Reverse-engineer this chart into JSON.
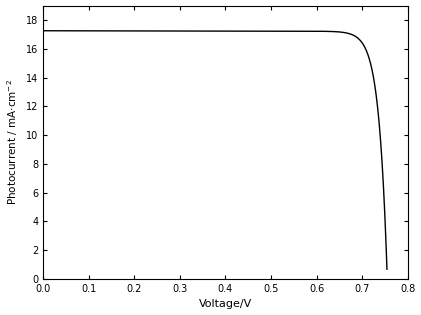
{
  "title": "",
  "xlabel": "Voltage/V",
  "ylabel": "Photocurrent / mA cm$^{-2}$",
  "xlim": [
    0.0,
    0.8
  ],
  "ylim": [
    0.0,
    19.0
  ],
  "xticks": [
    0.0,
    0.1,
    0.2,
    0.3,
    0.4,
    0.5,
    0.6,
    0.7,
    0.8
  ],
  "yticks": [
    0,
    2,
    4,
    6,
    8,
    10,
    12,
    14,
    16,
    18
  ],
  "line_color": "#000000",
  "line_width": 1.0,
  "jsc": 17.25,
  "voc": 0.755,
  "background_color": "#ffffff",
  "figsize": [
    4.21,
    3.15
  ],
  "dpi": 100
}
